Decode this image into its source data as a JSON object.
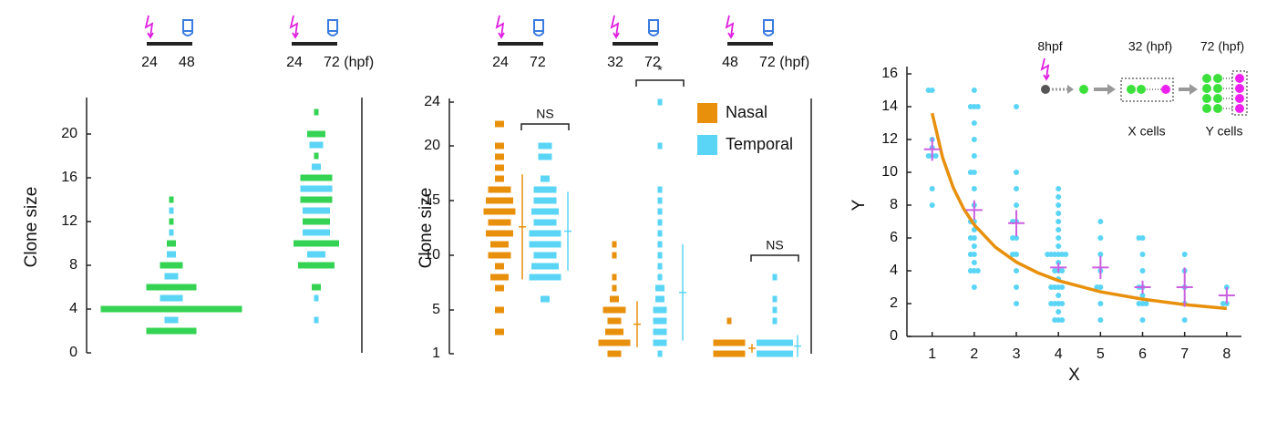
{
  "chart_data": [
    {
      "type": "clone-histogram",
      "ylabel": "Clone size",
      "ylim": [
        0,
        23
      ],
      "yticks": [
        0,
        4,
        8,
        12,
        16,
        20
      ],
      "colors": [
        "#35d353",
        "#5ad5f6"
      ],
      "groups": [
        {
          "start": "24",
          "end": "48",
          "sets": [
            {
              "sizes": [
                2,
                3,
                4,
                5,
                6,
                7,
                8,
                9,
                10,
                11,
                12,
                13,
                14
              ],
              "counts": [
                11,
                3,
                31,
                5,
                11,
                3,
                5,
                2,
                2,
                1,
                1,
                1,
                1
              ]
            }
          ]
        },
        {
          "start": "24",
          "end": "72 (hpf)",
          "sets": [
            {
              "sizes": [
                3,
                5,
                6,
                8,
                9,
                10,
                11,
                12,
                13,
                14,
                15,
                16,
                17,
                18,
                19,
                20,
                22
              ],
              "counts": [
                1,
                1,
                2,
                8,
                4,
                10,
                6,
                6,
                6,
                7,
                7,
                7,
                2,
                1,
                3,
                4,
                1
              ]
            }
          ]
        }
      ]
    },
    {
      "type": "clone-histogram",
      "ylabel": "Clone size",
      "ylim": [
        1,
        24
      ],
      "yticks": [
        1,
        5,
        10,
        15,
        20,
        24
      ],
      "series": [
        {
          "name": "Nasal",
          "color": "#e8900c"
        },
        {
          "name": "Temporal",
          "color": "#5ad5f6"
        }
      ],
      "groups": [
        {
          "start": "24",
          "end": "72",
          "significance": "NS",
          "sets": [
            {
              "sizes": [
                3,
                5,
                7,
                8,
                9,
                10,
                11,
                12,
                13,
                14,
                15,
                16,
                17,
                18,
                19,
                20,
                22
              ],
              "counts": [
                2,
                2,
                2,
                4,
                2,
                5,
                4,
                6,
                5,
                7,
                6,
                5,
                2,
                2,
                2,
                2,
                2
              ],
              "mean": 12.6,
              "error": 4.8
            },
            {
              "sizes": [
                6,
                8,
                9,
                10,
                11,
                12,
                13,
                14,
                15,
                16,
                17,
                19,
                20
              ],
              "counts": [
                2,
                7,
                6,
                5,
                7,
                7,
                5,
                6,
                5,
                5,
                2,
                3,
                3
              ],
              "mean": 12.2,
              "error": 3.6
            }
          ]
        },
        {
          "start": "32",
          "end": "72",
          "significance": "*",
          "sets": [
            {
              "sizes": [
                1,
                2,
                3,
                4,
                5,
                6,
                7,
                8,
                10,
                11
              ],
              "counts": [
                3,
                7,
                4,
                3,
                5,
                2,
                1,
                1,
                1,
                1
              ],
              "mean": 3.7,
              "error": 2.1
            },
            {
              "sizes": [
                1,
                2,
                3,
                4,
                5,
                6,
                7,
                8,
                9,
                10,
                11,
                12,
                13,
                14,
                15,
                16,
                20,
                24
              ],
              "counts": [
                1,
                3,
                3,
                3,
                3,
                2,
                2,
                1,
                1,
                1,
                1,
                1,
                1,
                1,
                1,
                1,
                1,
                1
              ],
              "mean": 6.6,
              "error": 4.4
            }
          ]
        },
        {
          "start": "48",
          "end": "72 (hpf)",
          "significance": "NS",
          "sets": [
            {
              "sizes": [
                1,
                2,
                4
              ],
              "counts": [
                7,
                7,
                1
              ],
              "mean": 1.5,
              "error": 0.4
            },
            {
              "sizes": [
                1,
                2,
                4,
                5,
                6,
                8
              ],
              "counts": [
                8,
                8,
                1,
                1,
                1,
                1
              ],
              "mean": 1.7,
              "error": 1.0
            }
          ]
        }
      ]
    },
    {
      "type": "scatter",
      "xlabel": "X",
      "ylabel": "Y",
      "xlim": [
        0.4,
        8.35
      ],
      "ylim": [
        0,
        16
      ],
      "xticks": [
        1,
        2,
        3,
        4,
        5,
        6,
        7,
        8
      ],
      "yticks": [
        0,
        2,
        4,
        6,
        8,
        10,
        12,
        14,
        16
      ],
      "points": {
        "color": "#5ad5f6",
        "x": [
          1,
          1,
          1,
          1,
          1,
          1,
          1,
          1,
          1,
          2,
          2,
          2,
          2,
          2,
          2,
          2,
          2,
          2,
          2,
          2,
          2,
          2,
          2,
          2,
          2,
          2,
          2,
          2,
          2,
          2,
          2,
          2,
          2,
          3,
          3,
          3,
          3,
          3,
          3,
          3,
          3,
          3,
          3,
          3,
          3,
          3,
          4,
          4,
          4,
          4,
          4,
          4,
          4,
          4,
          4,
          4,
          4,
          4,
          4,
          4,
          4,
          4,
          4,
          4,
          4,
          4,
          4,
          4,
          4,
          4,
          4,
          4,
          4,
          4,
          4,
          4,
          4,
          4,
          5,
          5,
          5,
          5,
          5,
          5,
          5,
          5,
          6,
          6,
          6,
          6,
          6,
          6,
          6,
          6,
          6,
          6,
          6,
          7,
          7,
          7,
          7,
          7,
          8,
          8,
          8
        ],
        "y": [
          15,
          15,
          12,
          11.5,
          11,
          11,
          11,
          9,
          8,
          15,
          14,
          14,
          14,
          13,
          12,
          11,
          10,
          10,
          9,
          8,
          7,
          7,
          6.5,
          6,
          6,
          5.5,
          5,
          5,
          4.5,
          4,
          4,
          4,
          3,
          14,
          10,
          9,
          8,
          7,
          7,
          6,
          6,
          5,
          5,
          4,
          3,
          2,
          9,
          8.5,
          8,
          7.5,
          7,
          6.5,
          6,
          5.5,
          5,
          5,
          5,
          5,
          5,
          5,
          4.5,
          4,
          4,
          4,
          3.5,
          3,
          3,
          3,
          3,
          2.5,
          2,
          2,
          2,
          2,
          1.5,
          1,
          1,
          1,
          7,
          6,
          5,
          4,
          3,
          3,
          2,
          1,
          6,
          6,
          5,
          4,
          3,
          3,
          2.5,
          2,
          2,
          2,
          1,
          5,
          4,
          3,
          2,
          1,
          3,
          2,
          2
        ]
      },
      "means": {
        "color": "#cc5fe0",
        "x": [
          1,
          2,
          3,
          4,
          5,
          6,
          7,
          8
        ],
        "y": [
          11.4,
          7.7,
          6.9,
          4.2,
          4.2,
          3.0,
          3.0,
          2.5
        ],
        "error": [
          0.7,
          0.6,
          0.8,
          0.3,
          0.7,
          0.4,
          1.2,
          0.5
        ]
      },
      "fit": {
        "color": "#e8900c",
        "x": [
          1,
          1.25,
          1.5,
          1.75,
          2,
          2.5,
          3,
          3.5,
          4,
          5,
          6,
          7,
          8
        ],
        "y": [
          13.6,
          10.88,
          9.07,
          7.77,
          6.8,
          5.44,
          4.53,
          3.89,
          3.4,
          2.72,
          2.27,
          1.94,
          1.7
        ]
      },
      "annotations": {
        "start": "8hpf",
        "mid": "32 (hpf)",
        "end": "72 (hpf)",
        "x_cells": "X cells",
        "y_cells": "Y cells"
      }
    }
  ]
}
